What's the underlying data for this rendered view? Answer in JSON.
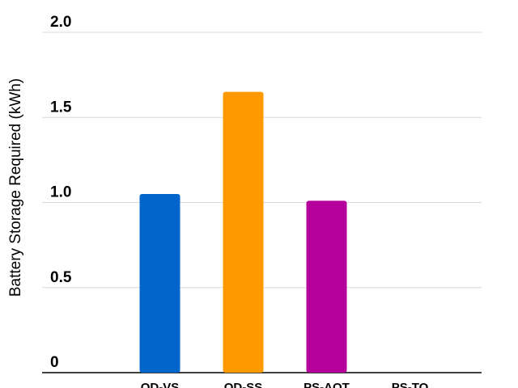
{
  "chart_data": {
    "type": "bar",
    "y_label": "Battery Storage Required (kWh)",
    "categories": [
      "OD-VS",
      "OD-SS",
      "PS-AOT",
      "PS-TO"
    ],
    "values": [
      1.05,
      1.65,
      1.01,
      0
    ],
    "colors": [
      "#0066cc",
      "#ff9900",
      "#b5009b",
      "#888888"
    ],
    "ylim": [
      0,
      2.0
    ],
    "yticks": [
      0,
      0.5,
      {
        "value": 1,
        "label": "1.0"
      },
      1.5,
      {
        "value": 2,
        "label": "2.0"
      }
    ],
    "grid": true
  }
}
